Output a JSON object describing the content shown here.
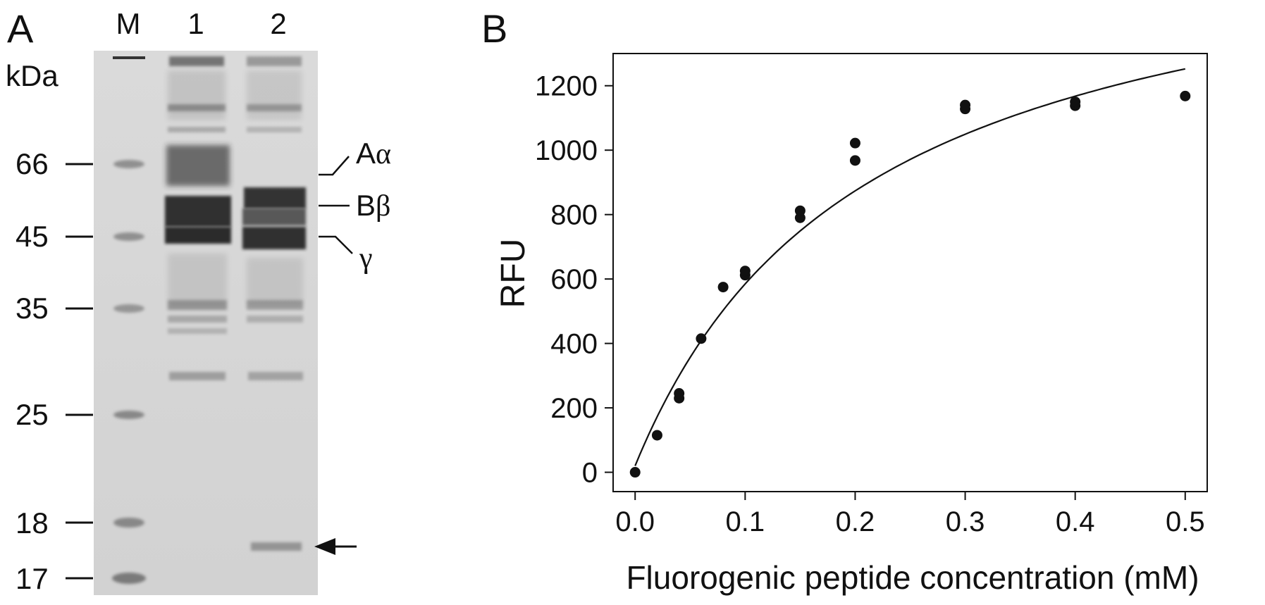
{
  "panel_a": {
    "panel_label": "A",
    "unit_label": "kDa",
    "lane_labels": [
      "M",
      "1",
      "2"
    ],
    "marker_labels": [
      "66",
      "45",
      "35",
      "25",
      "18",
      "17"
    ],
    "band_labels": {
      "alpha": {
        "prefix": "A",
        "greek": "α"
      },
      "beta": {
        "prefix": "B",
        "greek": "β"
      },
      "gamma": {
        "prefix": "",
        "greek": "γ"
      }
    },
    "arrow_icon": "left-arrow-icon"
  },
  "chart_data": {
    "type": "scatter",
    "panel_label": "B",
    "title": "",
    "xlabel": "Fluorogenic peptide concentration (mM)",
    "ylabel": "RFU",
    "xlim": [
      -0.02,
      0.52
    ],
    "ylim": [
      -60,
      1300
    ],
    "x_ticks": [
      0.0,
      0.1,
      0.2,
      0.3,
      0.4,
      0.5
    ],
    "x_tick_labels": [
      "0.0",
      "0.1",
      "0.2",
      "0.3",
      "0.4",
      "0.5"
    ],
    "y_ticks": [
      0,
      200,
      400,
      600,
      800,
      1000,
      1200
    ],
    "y_tick_labels": [
      "0",
      "200",
      "400",
      "600",
      "800",
      "1000",
      "1200"
    ],
    "grid": false,
    "points": [
      {
        "x": 0.0,
        "y": 0
      },
      {
        "x": 0.02,
        "y": 115
      },
      {
        "x": 0.04,
        "y": 230
      },
      {
        "x": 0.04,
        "y": 245
      },
      {
        "x": 0.06,
        "y": 415
      },
      {
        "x": 0.08,
        "y": 575
      },
      {
        "x": 0.1,
        "y": 612
      },
      {
        "x": 0.1,
        "y": 625
      },
      {
        "x": 0.15,
        "y": 790
      },
      {
        "x": 0.15,
        "y": 812
      },
      {
        "x": 0.2,
        "y": 968
      },
      {
        "x": 0.2,
        "y": 1022
      },
      {
        "x": 0.3,
        "y": 1128
      },
      {
        "x": 0.3,
        "y": 1140
      },
      {
        "x": 0.4,
        "y": 1138
      },
      {
        "x": 0.4,
        "y": 1150
      },
      {
        "x": 0.5,
        "y": 1168
      }
    ],
    "fit": {
      "model": "michaelis-menten",
      "vmax": 1750,
      "km": 0.21,
      "x_range": [
        0.0,
        0.5
      ],
      "y_at_start": 20
    }
  }
}
